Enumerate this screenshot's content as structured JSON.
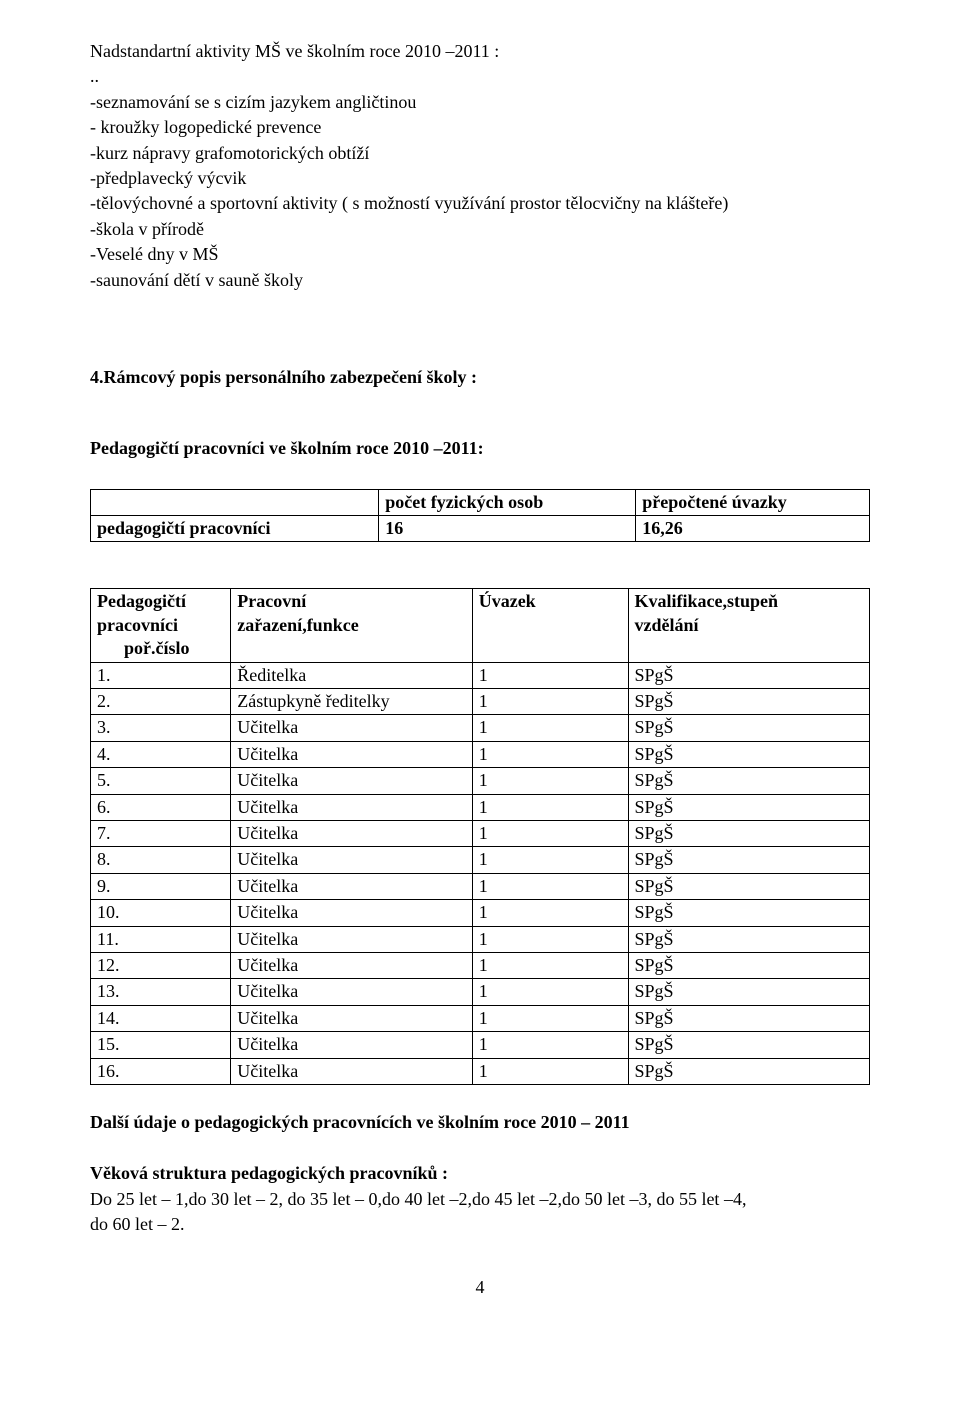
{
  "title": "Nadstandartní aktivity MŠ ve školním roce 2010 –2011 :",
  "subtitle_dots": "..",
  "activities": [
    "-seznamování se s cizím jazykem angličtinou",
    "- kroužky logopedické prevence",
    "-kurz nápravy grafomotorických obtíží",
    "-předplavecký výcvik",
    "-tělovýchovné a sportovní aktivity ( s možností využívání prostor tělocvičny na klášteře)",
    "-škola v přírodě",
    "-Veselé dny v MŠ",
    "-saunování dětí v sauně školy"
  ],
  "section4_heading": "4.Rámcový popis personálního zabezpečení školy :",
  "staff_heading": "Pedagogičtí pracovníci ve školním roce 2010 –2011:",
  "table1": {
    "hdr_blank": "",
    "hdr_col2": "počet fyzických osob",
    "hdr_col3": "přepočtené úvazky",
    "row_label": "pedagogičtí pracovníci",
    "row_count": "16",
    "row_converted": "16,26"
  },
  "table2": {
    "hdr_c1_line1": "Pedagogičtí",
    "hdr_c1_line2": "pracovníci",
    "hdr_c1_line3": "      poř.číslo",
    "hdr_c2_line1": "Pracovní",
    "hdr_c2_line2": "zařazení,funkce",
    "hdr_c3": "Úvazek",
    "hdr_c4_line1": "Kvalifikace,stupeň",
    "hdr_c4_line2": "vzdělání",
    "rows": [
      {
        "n": "1.",
        "role": "Ředitelka",
        "u": "1",
        "q": "SPgŠ"
      },
      {
        "n": "2.",
        "role": "Zástupkyně ředitelky",
        "u": "1",
        "q": "SPgŠ"
      },
      {
        "n": "3.",
        "role": "Učitelka",
        "u": "1",
        "q": "SPgŠ"
      },
      {
        "n": "4.",
        "role": "Učitelka",
        "u": "1",
        "q": "SPgŠ"
      },
      {
        "n": "5.",
        "role": "Učitelka",
        "u": "1",
        "q": "SPgŠ"
      },
      {
        "n": "6.",
        "role": "Učitelka",
        "u": "1",
        "q": "SPgŠ"
      },
      {
        "n": "7.",
        "role": "Učitelka",
        "u": "1",
        "q": "SPgŠ"
      },
      {
        "n": "8.",
        "role": "Učitelka",
        "u": "1",
        "q": "SPgŠ"
      },
      {
        "n": "9.",
        "role": "Učitelka",
        "u": "1",
        "q": "SPgŠ"
      },
      {
        "n": "10.",
        "role": "Učitelka",
        "u": "1",
        "q": "SPgŠ"
      },
      {
        "n": "11.",
        "role": "Učitelka",
        "u": "1",
        "q": "SPgŠ"
      },
      {
        "n": "12.",
        "role": "Učitelka",
        "u": "1",
        "q": "SPgŠ"
      },
      {
        "n": "13.",
        "role": "Učitelka",
        "u": "1",
        "q": "SPgŠ"
      },
      {
        "n": "14.",
        "role": "Učitelka",
        "u": "1",
        "q": "SPgŠ"
      },
      {
        "n": "15.",
        "role": "Učitelka",
        "u": "1",
        "q": "SPgŠ"
      },
      {
        "n": "16.",
        "role": "Učitelka",
        "u": "1",
        "q": "SPgŠ"
      }
    ]
  },
  "further_heading": "Další údaje o pedagogických pracovnících ve školním roce 2010 – 2011",
  "age_heading": "Věková struktura pedagogických pracovníků :",
  "age_line1": "Do 25 let – 1,do 30 let – 2, do 35 let – 0,do 40 let –2,do 45 let –2,do 50 let –3, do 55 let –4,",
  "age_line2": "do 60 let – 2.",
  "page_number": "4"
}
